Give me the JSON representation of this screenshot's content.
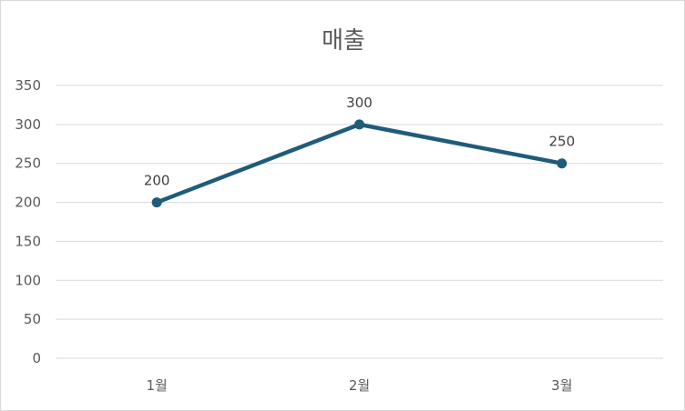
{
  "chart_data": {
    "type": "line",
    "title": "매출",
    "xlabel": "",
    "ylabel": "",
    "categories": [
      "1월",
      "2월",
      "3월"
    ],
    "series": [
      {
        "values": [
          200,
          300,
          250
        ],
        "color": "#1f5c7a"
      }
    ],
    "ylim": [
      0,
      350
    ],
    "yticks": [
      0,
      50,
      100,
      150,
      200,
      250,
      300,
      350
    ],
    "grid": true,
    "legend": "none",
    "data_labels": true
  }
}
